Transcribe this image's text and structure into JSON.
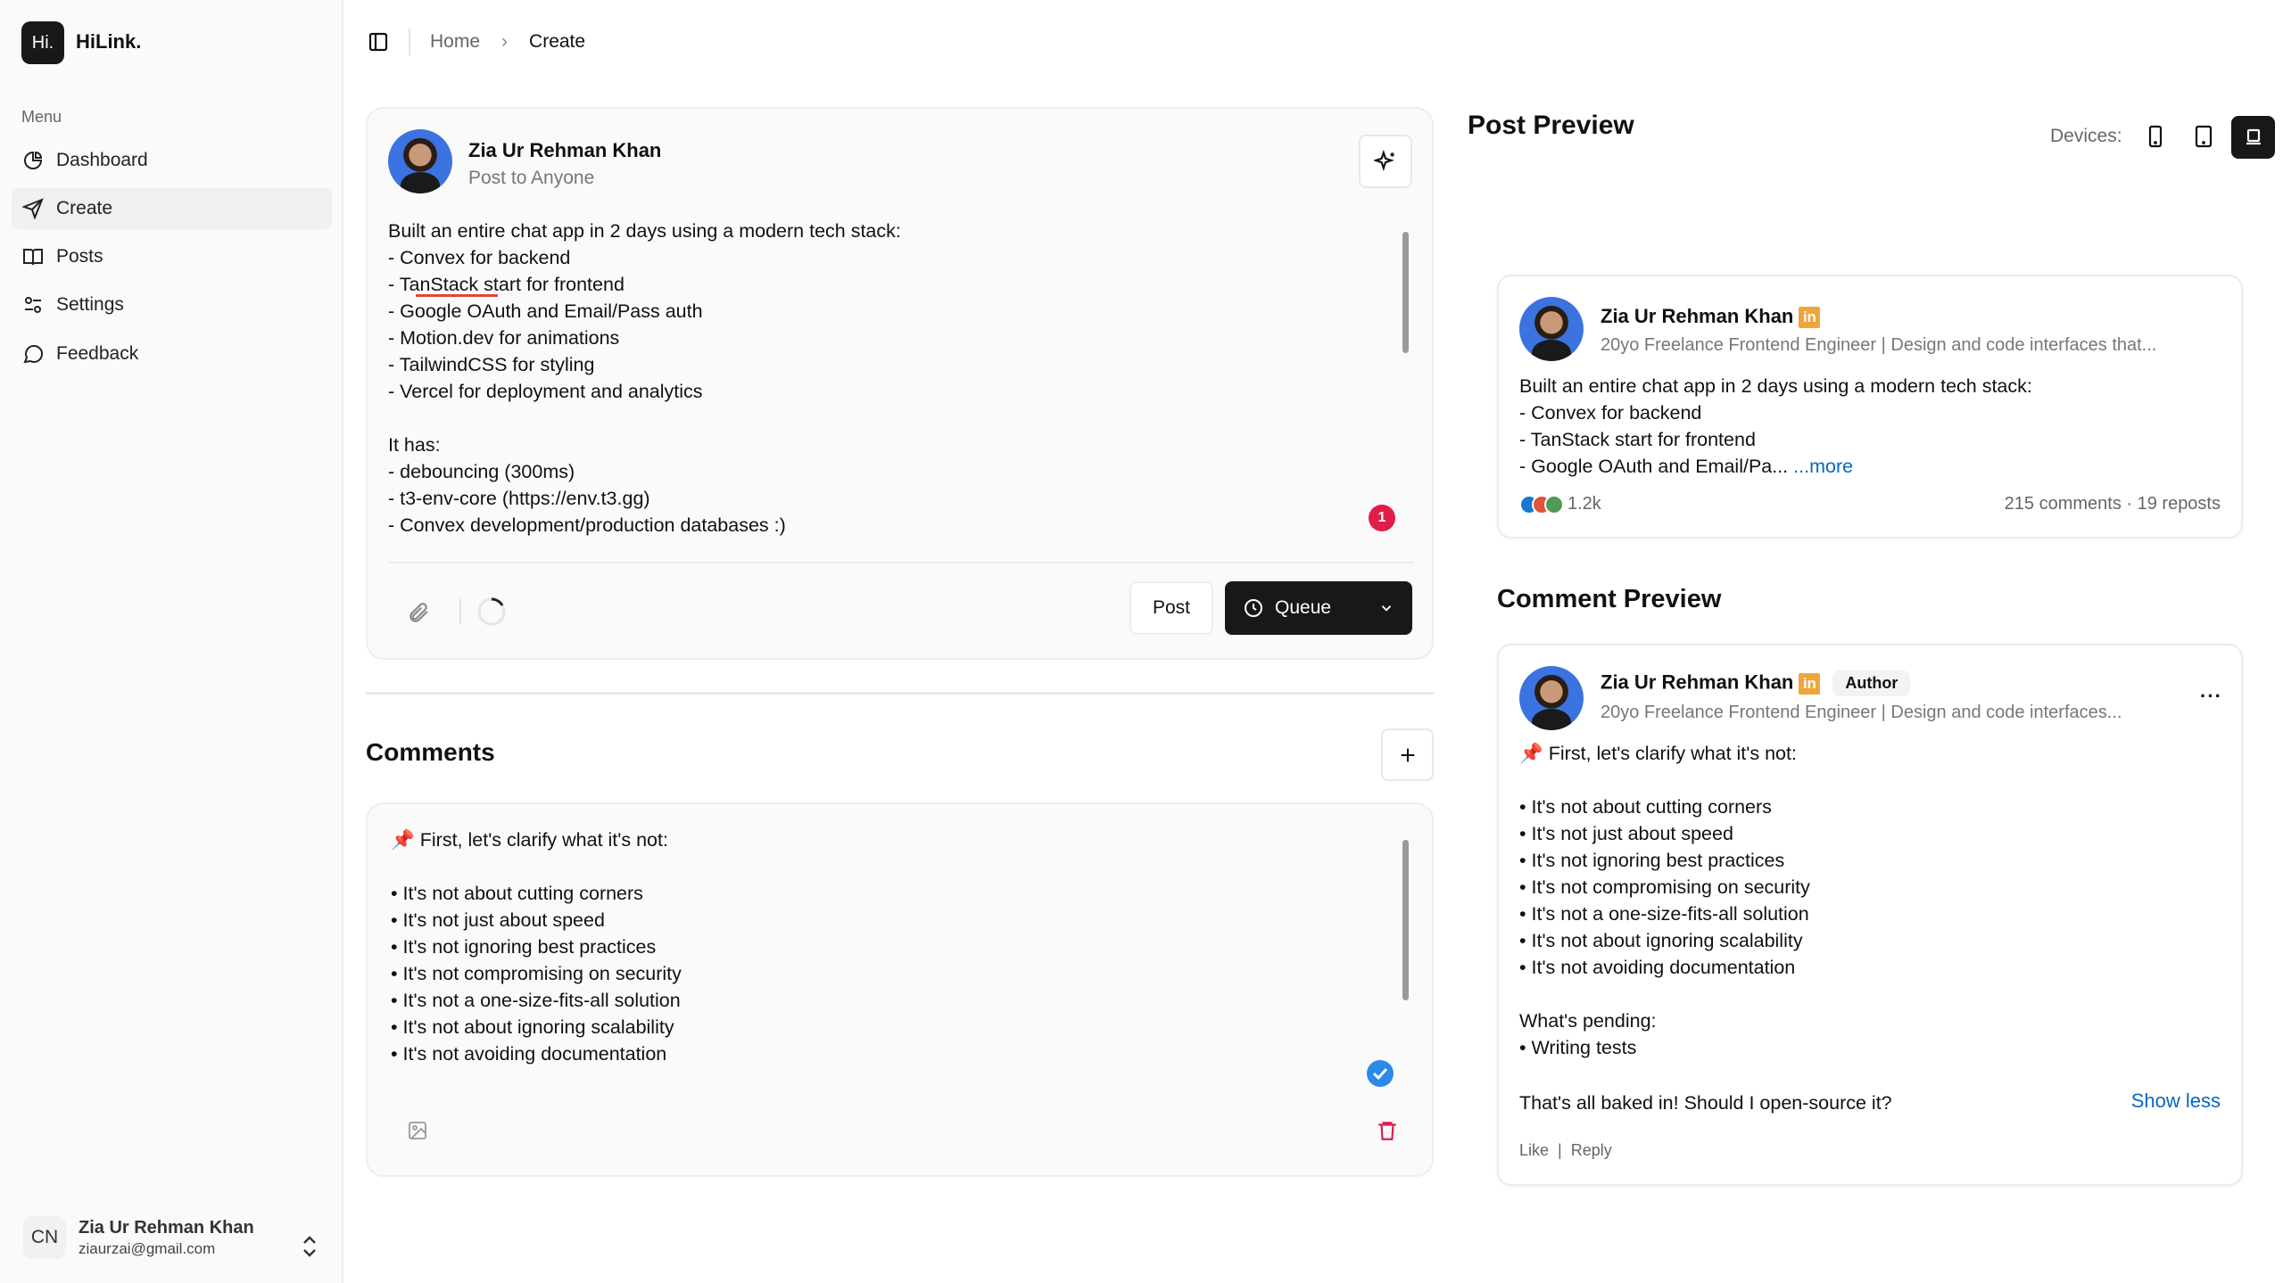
{
  "brand": {
    "logo": "Hi.",
    "name": "HiLink."
  },
  "sidebar": {
    "menu_label": "Menu",
    "items": [
      {
        "label": "Dashboard",
        "icon": "pie-chart-icon"
      },
      {
        "label": "Create",
        "icon": "send-icon",
        "active": true
      },
      {
        "label": "Posts",
        "icon": "book-open-icon"
      },
      {
        "label": "Settings",
        "icon": "sliders-icon"
      },
      {
        "label": "Feedback",
        "icon": "message-circle-icon"
      }
    ],
    "user": {
      "initials": "CN",
      "name": "Zia Ur Rehman Khan",
      "email": "ziaurzai@gmail.com"
    }
  },
  "breadcrumb": {
    "home": "Home",
    "current": "Create"
  },
  "composer": {
    "author": "Zia Ur Rehman Khan",
    "audience": "Post to Anyone",
    "text": "Built an entire chat app in 2 days using a modern tech stack:\n- Convex for backend\n- TanStack start for frontend\n- Google OAuth and Email/Pass auth\n- Motion.dev for animations\n- TailwindCSS for styling\n- Vercel for deployment and analytics\n\nIt has:\n- debouncing (300ms)\n- t3-env-core (https://env.t3.gg)\n- Convex development/production databases :)",
    "error_count": "1",
    "post_label": "Post",
    "queue_label": "Queue"
  },
  "comments": {
    "title": "Comments",
    "items": [
      {
        "text": "📌 First, let's clarify what it's not:\n\n• It's not about cutting corners\n• It's not just about speed\n• It's not ignoring best practices\n• It's not compromising on security\n• It's not a one-size-fits-all solution\n• It's not about ignoring scalability\n• It's not avoiding documentation"
      }
    ]
  },
  "preview": {
    "title": "Post Preview",
    "devices_label": "Devices:",
    "devices": [
      "mobile",
      "tablet",
      "desktop"
    ],
    "selected_device": "desktop",
    "post": {
      "author": "Zia Ur Rehman Khan",
      "headline": "20yo Freelance Frontend Engineer | Design and code interfaces that...",
      "text": "Built an entire chat app in 2 days using a modern tech stack:\n- Convex for backend\n- TanStack start for frontend\n- Google OAuth and Email/Pa...",
      "more": "...more",
      "reactions": "1.2k",
      "stats": "215 comments · 19 reposts"
    },
    "comment_title": "Comment Preview",
    "comment": {
      "author": "Zia Ur Rehman Khan",
      "badge": "Author",
      "headline": "20yo Freelance Frontend Engineer | Design and code interfaces...",
      "text": "📌 First, let's clarify what it's not:\n\n• It's not about cutting corners\n• It's not just about speed\n• It's not ignoring best practices\n• It's not compromising on security\n• It's not a one-size-fits-all solution\n• It's not about ignoring scalability\n• It's not avoiding documentation\n\nWhat's pending:\n• Writing tests",
      "last_line": "That's all baked in! Should I open-source it?",
      "show_less": "Show less",
      "like": "Like",
      "reply": "Reply"
    }
  },
  "colors": {
    "accent": "#18181b",
    "error": "#e11d48",
    "link": "#0a66c2",
    "linkedin": "#f0a53a",
    "check": "#2b8ae8"
  }
}
